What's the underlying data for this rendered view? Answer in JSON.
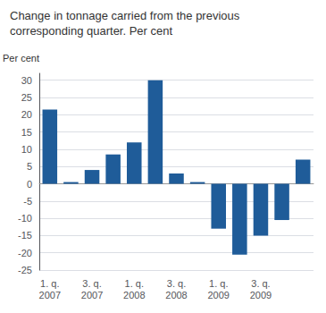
{
  "chart_data": {
    "type": "bar",
    "title": "Change in tonnage carried from the previous\ncorresponding quarter. Per cent",
    "ylabel": "Per cent",
    "categories": [
      "1. q.\n2007",
      null,
      "3. q.\n2007",
      null,
      "1. q.\n2008",
      null,
      "3. q.\n2008",
      null,
      "1. q.\n2009",
      null,
      "3. q.\n2009",
      null,
      null
    ],
    "values": [
      21.5,
      0.5,
      4.0,
      8.5,
      12.0,
      30.0,
      3.0,
      0.5,
      -13.0,
      -20.5,
      -15.0,
      -10.5,
      7.0
    ],
    "color": "#1F5C99",
    "ylim": [
      -25,
      32
    ],
    "yticks": [
      -25,
      -20,
      -15,
      -10,
      -5,
      0,
      5,
      10,
      15,
      20,
      25,
      30
    ],
    "grid": true
  }
}
